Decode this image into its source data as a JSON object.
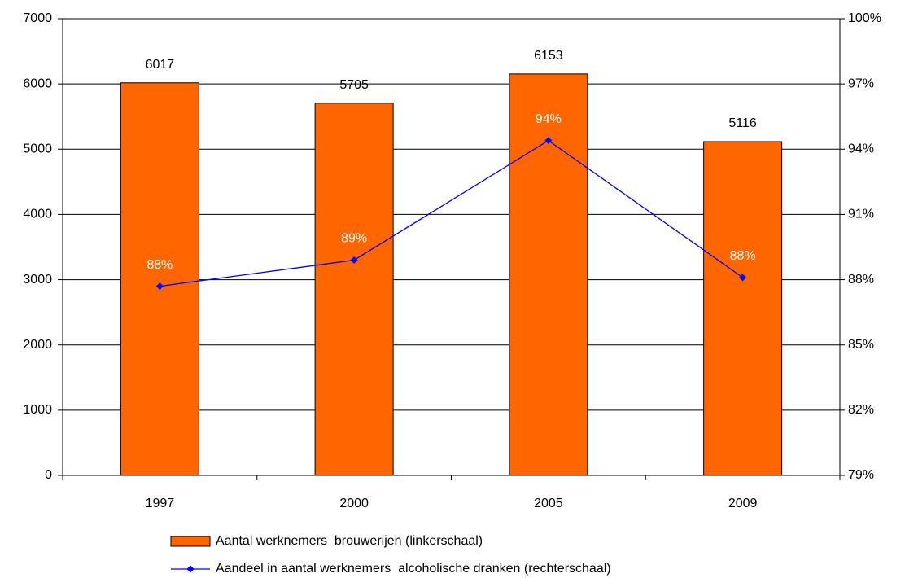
{
  "chart_data": {
    "type": "bar",
    "categories": [
      "1997",
      "2000",
      "2005",
      "2009"
    ],
    "series": [
      {
        "name": "Aantal werknemers  brouwerijen (linkerschaal)",
        "color": "#ff6600",
        "values": [
          6017,
          5705,
          6153,
          5116
        ]
      },
      {
        "name": "Aandeel in aantal werknemers  alcoholische dranken (rechterschaal)",
        "type": "line",
        "axis": "y2",
        "color": "#0000ff",
        "values": [
          87.7,
          88.9,
          94.4,
          88.1
        ],
        "value_labels": [
          "88%",
          "89%",
          "94%",
          "88%"
        ]
      }
    ],
    "ylim": [
      0,
      7000
    ],
    "yticks": [
      0,
      1000,
      2000,
      3000,
      4000,
      5000,
      6000,
      7000
    ],
    "y2lim": [
      79,
      100
    ],
    "y2ticks": [
      {
        "value": 79,
        "label": "79%"
      },
      {
        "value": 82,
        "label": "82%"
      },
      {
        "value": 85,
        "label": "85%"
      },
      {
        "value": 88,
        "label": "88%"
      },
      {
        "value": 91,
        "label": "91%"
      },
      {
        "value": 94,
        "label": "94%"
      },
      {
        "value": 97,
        "label": "97%"
      },
      {
        "value": 100,
        "label": "100%"
      }
    ],
    "grid": true
  }
}
